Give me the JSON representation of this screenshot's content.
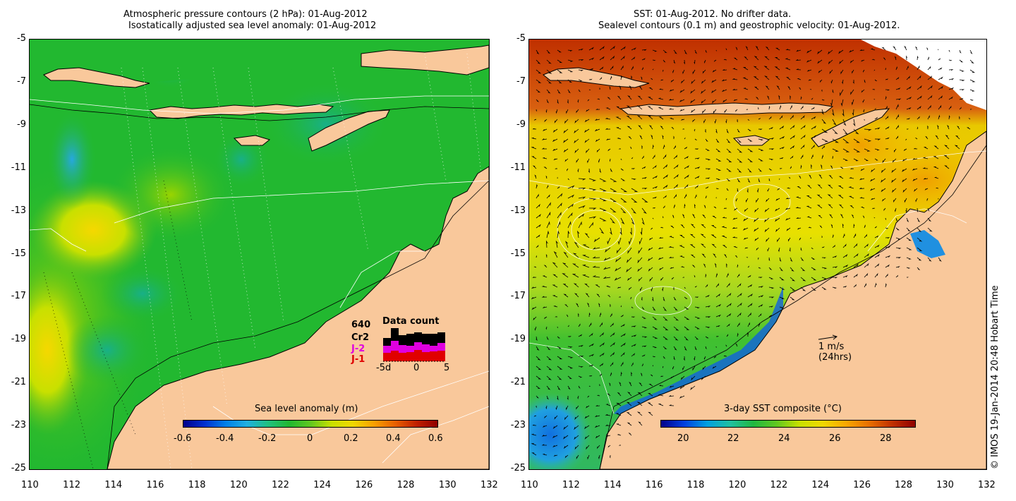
{
  "left_panel": {
    "title_line1": "Atmospheric pressure contours (2 hPa): 01-Aug-2012",
    "title_line2": "Isostatically adjusted sea level anomaly: 01-Aug-2012",
    "colorbar": {
      "title": "Sea level anomaly (m)",
      "labels": [
        "-0.6",
        "-0.4",
        "-0.2",
        "0",
        "0.2",
        "0.4",
        "0.6"
      ],
      "range": [
        -0.6,
        0.6
      ]
    },
    "data_count": {
      "title": "Data count",
      "total": "640",
      "satellites": [
        "Cr2",
        "J-2",
        "J-1"
      ],
      "sat_colors": [
        "#000000",
        "#e000e0",
        "#e00000"
      ],
      "axis_labels": [
        "-5d",
        "0",
        "5"
      ]
    }
  },
  "right_panel": {
    "title_line1": "SST: 01-Aug-2012. No drifter data.",
    "title_line2": "Sealevel contours (0.1 m) and geostrophic velocity: 01-Aug-2012.",
    "colorbar": {
      "title": "3-day SST composite (°C)",
      "labels": [
        "20",
        "22",
        "24",
        "26",
        "28"
      ],
      "range": [
        19,
        29
      ]
    },
    "scale_arrow": {
      "label1": "1 m/s",
      "label2": "(24hrs)"
    }
  },
  "axes": {
    "x_labels": [
      "110",
      "112",
      "114",
      "116",
      "118",
      "120",
      "122",
      "124",
      "126",
      "128",
      "130",
      "132"
    ],
    "y_labels": [
      "-5",
      "-7",
      "-9",
      "-11",
      "-13",
      "-15",
      "-17",
      "-19",
      "-21",
      "-23",
      "-25"
    ]
  },
  "copyright": "© IMOS 19-Jan-2014 20:48 Hobart Time",
  "colors": {
    "land": "#f9c89b",
    "ocean_left": "#22b830",
    "ocean_right": "#e8e000"
  }
}
